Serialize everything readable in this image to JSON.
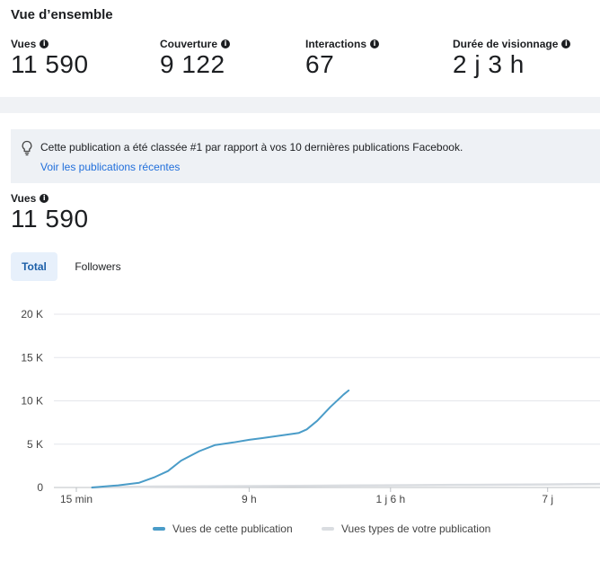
{
  "overview": {
    "title": "Vue d’ensemble",
    "metrics": [
      {
        "label": "Vues",
        "value": "11 590"
      },
      {
        "label": "Couverture",
        "value": "9 122"
      },
      {
        "label": "Interactions",
        "value": "67"
      },
      {
        "label": "Durée de visionnage",
        "value": "2 j 3 h"
      }
    ]
  },
  "banner": {
    "icon": "lightbulb-icon",
    "text": "Cette publication a été classée #1 par rapport à vos 10 dernières publications Facebook.",
    "link": "Voir les publications récentes"
  },
  "views_section": {
    "label": "Vues",
    "value": "11 590"
  },
  "tabs": [
    {
      "label": "Total",
      "active": true
    },
    {
      "label": "Followers",
      "active": false
    }
  ],
  "colors": {
    "series_primary": "#4a9cc8",
    "series_secondary": "#dadde1",
    "accent_link": "#216fdb"
  },
  "chart_data": {
    "type": "line",
    "title": "",
    "xlabel": "",
    "ylabel": "",
    "ylim": [
      0,
      20000
    ],
    "xlim": [
      0,
      10
    ],
    "y_ticks": [
      {
        "value": 0,
        "label": "0"
      },
      {
        "value": 5000,
        "label": "5 K"
      },
      {
        "value": 10000,
        "label": "10 K"
      },
      {
        "value": 15000,
        "label": "15 K"
      },
      {
        "value": 20000,
        "label": "20 K"
      }
    ],
    "x_ticks": [
      {
        "value": 0,
        "label": "15 min"
      },
      {
        "value": 3.3,
        "label": "9 h"
      },
      {
        "value": 6,
        "label": "1 j 6 h"
      },
      {
        "value": 9,
        "label": "7 j"
      }
    ],
    "grid": true,
    "legend_position": "bottom",
    "series": [
      {
        "name": "Vues de cette publication",
        "color": "#4a9cc8",
        "points": [
          [
            0.3,
            0
          ],
          [
            0.8,
            250
          ],
          [
            1.2,
            550
          ],
          [
            1.5,
            1200
          ],
          [
            1.75,
            1900
          ],
          [
            2.0,
            3100
          ],
          [
            2.35,
            4200
          ],
          [
            2.65,
            4900
          ],
          [
            3.0,
            5200
          ],
          [
            3.3,
            5500
          ],
          [
            3.55,
            5700
          ],
          [
            3.9,
            6000
          ],
          [
            4.25,
            6300
          ],
          [
            4.4,
            6700
          ],
          [
            4.6,
            7700
          ],
          [
            4.85,
            9300
          ],
          [
            5.1,
            10700
          ],
          [
            5.2,
            11200
          ]
        ]
      },
      {
        "name": "Vues types de votre publication",
        "color": "#dadde1",
        "points": [
          [
            0.3,
            0
          ],
          [
            1.5,
            100
          ],
          [
            3.0,
            150
          ],
          [
            4.5,
            200
          ],
          [
            6.0,
            250
          ],
          [
            7.5,
            300
          ],
          [
            9.0,
            350
          ],
          [
            10.0,
            400
          ]
        ]
      }
    ]
  }
}
